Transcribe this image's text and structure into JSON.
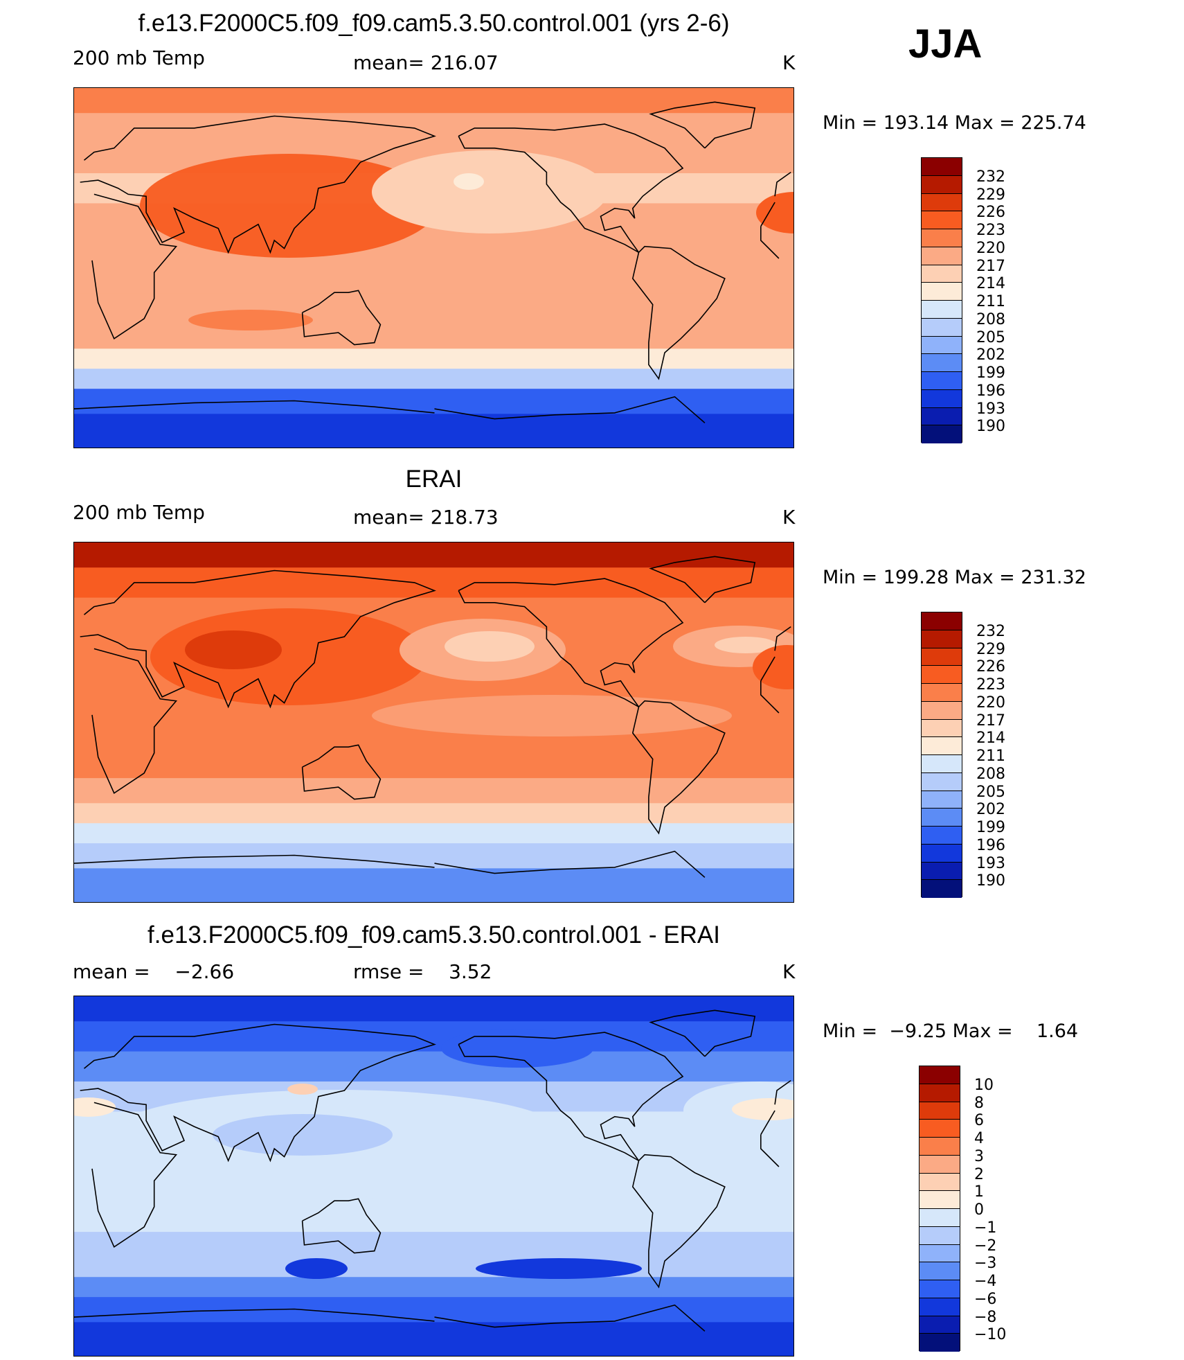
{
  "season": "JJA",
  "panels": [
    {
      "title": "f.e13.F2000C5.f09_f09.cam5.3.50.control.001 (yrs 2-6)",
      "left_label": "200 mb Temp",
      "center_label": "mean= 216.07",
      "units": "K",
      "minmax": "Min = 193.14 Max = 225.74"
    },
    {
      "title": "ERAI",
      "left_label": "200 mb Temp",
      "center_label": "mean= 218.73",
      "units": "K",
      "minmax": "Min = 199.28 Max = 231.32"
    },
    {
      "title": "f.e13.F2000C5.f09_f09.cam5.3.50.control.001 - ERAI",
      "left_label": "mean =    −2.66",
      "center_label": "rmse =    3.52",
      "units": "K",
      "minmax": "Min =  −9.25 Max =    1.64"
    }
  ],
  "chart_data": [
    {
      "type": "heatmap",
      "title": "f.e13.F2000C5.f09_f09.cam5.3.50.control.001 (yrs 2-6)",
      "variable": "200 mb Temp",
      "units": "K",
      "mean": 216.07,
      "min": 193.14,
      "max": 225.74,
      "colorbar_levels": [
        "232",
        "229",
        "226",
        "223",
        "220",
        "217",
        "214",
        "211",
        "208",
        "205",
        "202",
        "199",
        "196",
        "193",
        "190"
      ],
      "colorbar_colors": [
        "#8b0000",
        "#b51a00",
        "#de3b0b",
        "#f85c21",
        "#fa7f4a",
        "#fbaa85",
        "#fdd0b4",
        "#fdebd8",
        "#d6e7fa",
        "#b5ccfa",
        "#8fb2fa",
        "#5c8cf5",
        "#2f5ff2",
        "#1238dc",
        "#0a1db0",
        "#03107a"
      ],
      "zonal_mean_profile": {
        "lat": [
          85,
          70,
          55,
          40,
          25,
          10,
          -5,
          -20,
          -35,
          -45,
          -55,
          -65,
          -80
        ],
        "value": [
          222,
          219,
          218,
          216,
          219,
          218,
          218,
          218,
          217,
          213,
          205,
          197,
          193
        ]
      }
    },
    {
      "type": "heatmap",
      "title": "ERAI",
      "variable": "200 mb Temp",
      "units": "K",
      "mean": 218.73,
      "min": 199.28,
      "max": 231.32,
      "colorbar_levels": [
        "232",
        "229",
        "226",
        "223",
        "220",
        "217",
        "214",
        "211",
        "208",
        "205",
        "202",
        "199",
        "196",
        "193",
        "190"
      ],
      "colorbar_colors": [
        "#8b0000",
        "#b51a00",
        "#de3b0b",
        "#f85c21",
        "#fa7f4a",
        "#fbaa85",
        "#fdd0b4",
        "#fdebd8",
        "#d6e7fa",
        "#b5ccfa",
        "#8fb2fa",
        "#5c8cf5",
        "#2f5ff2",
        "#1238dc",
        "#0a1db0",
        "#03107a"
      ],
      "zonal_mean_profile": {
        "lat": [
          85,
          70,
          55,
          40,
          25,
          10,
          -5,
          -20,
          -35,
          -45,
          -55,
          -65,
          -80
        ],
        "value": [
          229,
          224,
          221,
          220,
          222,
          221,
          221,
          221,
          219,
          215,
          209,
          205,
          200
        ]
      }
    },
    {
      "type": "heatmap",
      "title": "f.e13.F2000C5.f09_f09.cam5.3.50.control.001 - ERAI",
      "units": "K",
      "mean": -2.66,
      "rmse": 3.52,
      "min": -9.25,
      "max": 1.64,
      "colorbar_levels": [
        "10",
        "8",
        "6",
        "4",
        "3",
        "2",
        "1",
        "0",
        "−1",
        "−2",
        "−3",
        "−4",
        "−6",
        "−8",
        "−10"
      ],
      "colorbar_colors": [
        "#8b0000",
        "#b51a00",
        "#de3b0b",
        "#f85c21",
        "#fa7f4a",
        "#fbaa85",
        "#fdd0b4",
        "#fdebd8",
        "#d6e7fa",
        "#b5ccfa",
        "#8fb2fa",
        "#5c8cf5",
        "#2f5ff2",
        "#1238dc",
        "#0a1db0",
        "#03107a"
      ],
      "zonal_mean_profile": {
        "lat": [
          85,
          70,
          55,
          40,
          25,
          10,
          -5,
          -20,
          -35,
          -45,
          -55,
          -65,
          -80
        ],
        "value": [
          -7,
          -5,
          -4,
          -2,
          -1,
          -1,
          -1,
          -1,
          -2,
          -2,
          -4,
          -6,
          -7
        ]
      }
    }
  ]
}
